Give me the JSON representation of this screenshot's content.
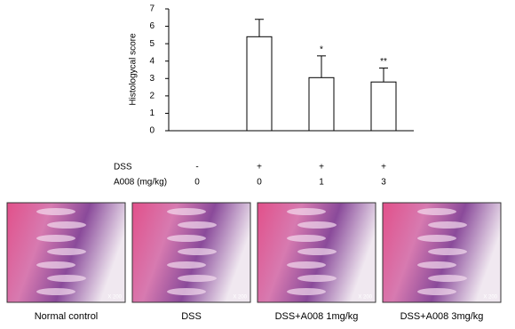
{
  "chart_data": {
    "type": "bar",
    "ylabel": "Histologycal score",
    "categories": [
      null,
      null,
      null,
      null
    ],
    "values": [
      0,
      5.4,
      3.05,
      2.8
    ],
    "errors": [
      null,
      1.0,
      1.25,
      0.8
    ],
    "annotations": [
      null,
      null,
      "*",
      "**"
    ],
    "color": "#ffffff",
    "ylim": [
      0,
      7
    ],
    "yticks": [
      0,
      1,
      2,
      3,
      4,
      5,
      6,
      7
    ],
    "table_rows": [
      {
        "label": "DSS",
        "values": [
          "-",
          "+",
          "+",
          "+"
        ]
      },
      {
        "label": "A008 (mg/kg)",
        "values": [
          "0",
          "0",
          "1",
          "3"
        ]
      }
    ]
  },
  "panels": [
    {
      "caption": "Normal control",
      "magnification": "X 200"
    },
    {
      "caption": "DSS",
      "magnification": "X 200"
    },
    {
      "caption": "DSS+A008 1mg/kg",
      "magnification": "X 200"
    },
    {
      "caption": "DSS+A008 3mg/kg",
      "magnification": "X 200"
    }
  ]
}
